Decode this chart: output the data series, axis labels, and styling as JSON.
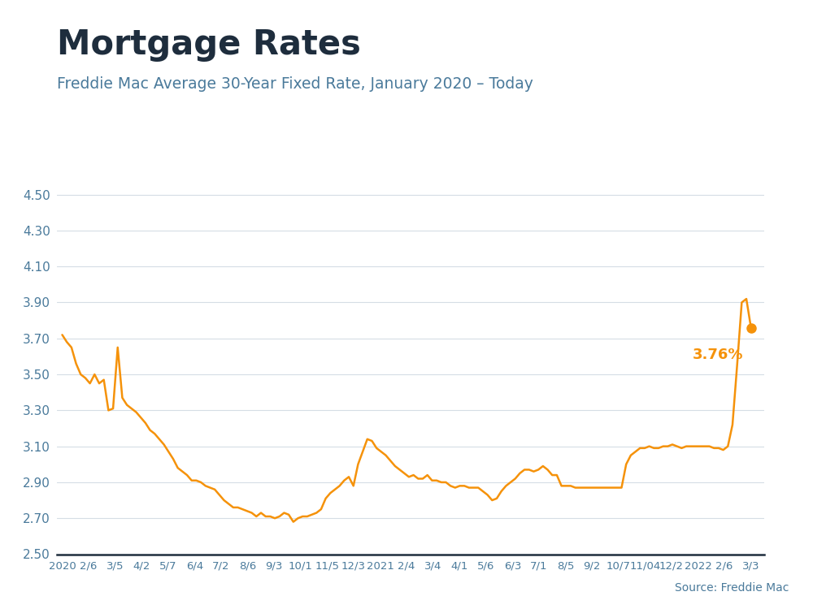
{
  "title": "Mortgage Rates",
  "subtitle": "Freddie Mac Average 30-Year Fixed Rate, January 2020 – Today",
  "source": "Source: Freddie Mac",
  "line_color": "#F5920A",
  "background_color": "#ffffff",
  "title_color": "#1e2d3d",
  "subtitle_color": "#4a7a9b",
  "axis_label_color": "#4a7a9b",
  "grid_color": "#d5dde5",
  "top_bar_color": "#29ABE2",
  "ylim": [
    2.5,
    4.6
  ],
  "yticks": [
    2.5,
    2.7,
    2.9,
    3.1,
    3.3,
    3.5,
    3.7,
    3.9,
    4.1,
    4.3,
    4.5
  ],
  "last_label": "3.76%",
  "xtick_labels": [
    "2020",
    "2/6",
    "3/5",
    "4/2",
    "5/7",
    "6/4",
    "7/2",
    "8/6",
    "9/3",
    "10/1",
    "11/5",
    "12/3",
    "2021",
    "2/4",
    "3/4",
    "4/1",
    "5/6",
    "6/3",
    "7/1",
    "8/5",
    "9/2",
    "10/7",
    "11/04",
    "12/2",
    "2022",
    "2/6",
    "3/3"
  ],
  "y_values": [
    3.72,
    3.68,
    3.65,
    3.56,
    3.5,
    3.48,
    3.45,
    3.5,
    3.45,
    3.47,
    3.3,
    3.31,
    3.65,
    3.37,
    3.33,
    3.31,
    3.29,
    3.26,
    3.23,
    3.19,
    3.17,
    3.14,
    3.11,
    3.07,
    3.03,
    2.98,
    2.96,
    2.94,
    2.91,
    2.91,
    2.9,
    2.88,
    2.87,
    2.86,
    2.83,
    2.8,
    2.78,
    2.76,
    2.76,
    2.75,
    2.74,
    2.73,
    2.71,
    2.73,
    2.71,
    2.71,
    2.7,
    2.71,
    2.73,
    2.72,
    2.68,
    2.7,
    2.71,
    2.71,
    2.72,
    2.73,
    2.75,
    2.81,
    2.84,
    2.86,
    2.88,
    2.91,
    2.93,
    2.88,
    3.0,
    3.07,
    3.14,
    3.13,
    3.09,
    3.07,
    3.05,
    3.02,
    2.99,
    2.97,
    2.95,
    2.93,
    2.94,
    2.92,
    2.92,
    2.94,
    2.91,
    2.91,
    2.9,
    2.9,
    2.88,
    2.87,
    2.88,
    2.88,
    2.87,
    2.87,
    2.87,
    2.85,
    2.83,
    2.8,
    2.81,
    2.85,
    2.88,
    2.9,
    2.92,
    2.95,
    2.97,
    2.97,
    2.96,
    2.97,
    2.99,
    2.97,
    2.94,
    2.94,
    2.88,
    2.88,
    2.88,
    2.87,
    2.87,
    2.87,
    2.87,
    2.87,
    2.87,
    2.87,
    2.87,
    2.87,
    2.87,
    2.87,
    3.0,
    3.05,
    3.07,
    3.09,
    3.09,
    3.1,
    3.09,
    3.09,
    3.1,
    3.1,
    3.11,
    3.1,
    3.09,
    3.1,
    3.1,
    3.1,
    3.1,
    3.1,
    3.1,
    3.09,
    3.09,
    3.08,
    3.1,
    3.22,
    3.55,
    3.9,
    3.92,
    3.76
  ]
}
